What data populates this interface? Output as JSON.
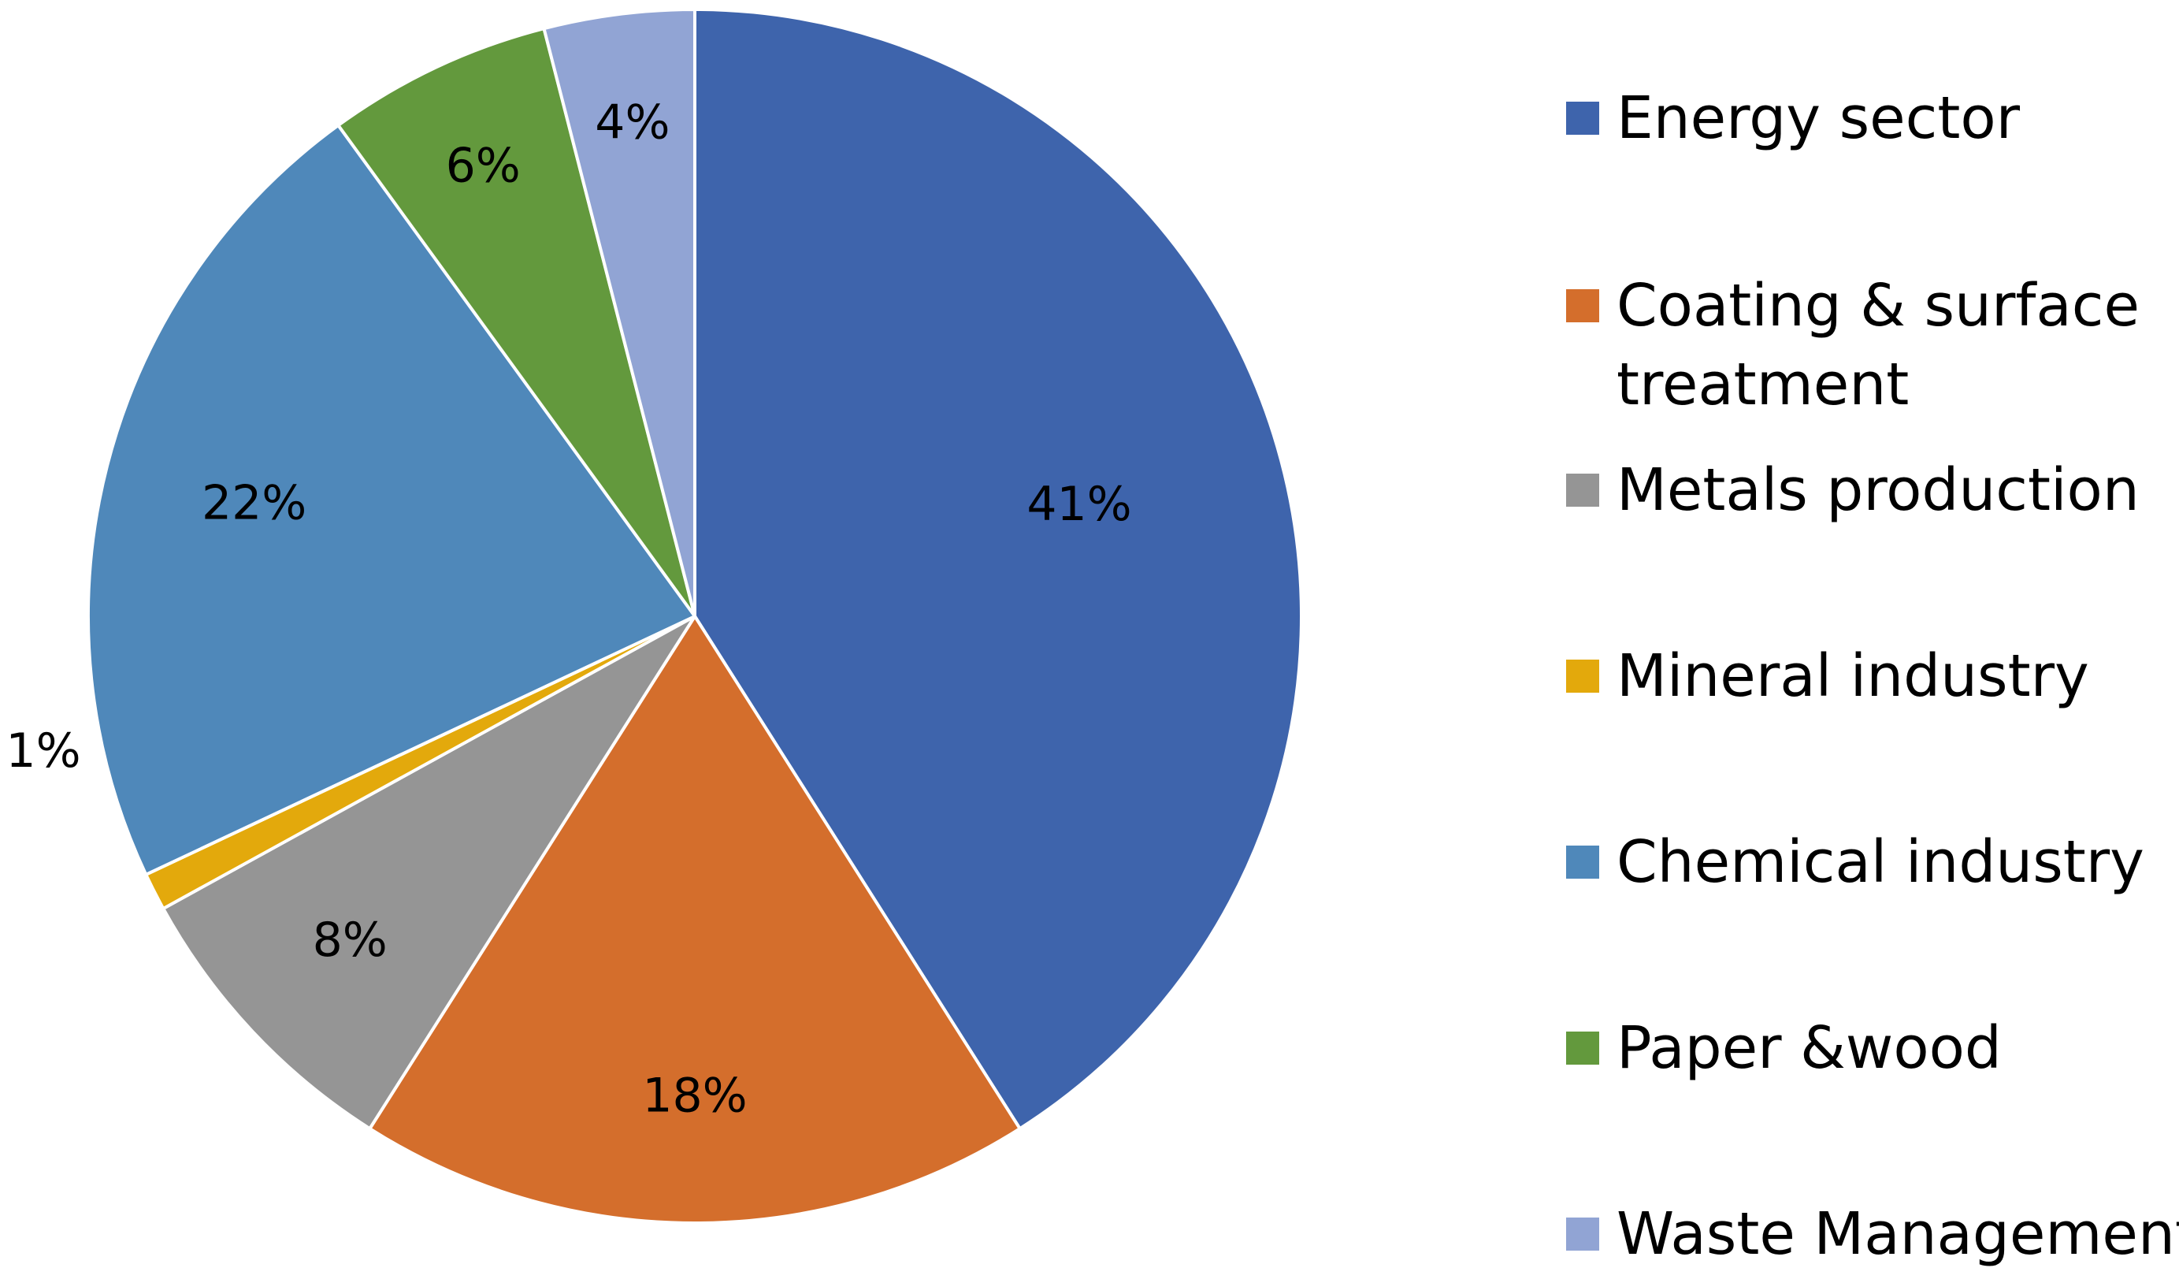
{
  "chart_data": {
    "type": "pie",
    "title": "",
    "start_angle_deg": 0,
    "direction": "clockwise",
    "slices": [
      {
        "name": "Energy sector",
        "value": 41,
        "label": "41%",
        "color": "#3E64AC"
      },
      {
        "name": "Coating & surface treatment",
        "value": 18,
        "label": "18%",
        "color": "#D46E2C"
      },
      {
        "name": "Metals production",
        "value": 8,
        "label": "8%",
        "color": "#959595"
      },
      {
        "name": "Mineral industry",
        "value": 1,
        "label": "1%",
        "color": "#E3A90C"
      },
      {
        "name": "Chemical industry",
        "value": 22,
        "label": "22%",
        "color": "#4F88BA"
      },
      {
        "name": "Paper &wood",
        "value": 6,
        "label": "6%",
        "color": "#63993D"
      },
      {
        "name": "Waste Management",
        "value": 4,
        "label": "4%",
        "color": "#91A4D4"
      }
    ],
    "legend": {
      "position": "right",
      "entries": [
        {
          "lines": [
            "Energy sector"
          ],
          "color": "#3E64AC"
        },
        {
          "lines": [
            "Coating & surface",
            "treatment"
          ],
          "color": "#D46E2C"
        },
        {
          "lines": [
            "Metals production"
          ],
          "color": "#959595"
        },
        {
          "lines": [
            "Mineral industry"
          ],
          "color": "#E3A90C"
        },
        {
          "lines": [
            "Chemical industry"
          ],
          "color": "#4F88BA"
        },
        {
          "lines": [
            "Paper &wood"
          ],
          "color": "#63993D"
        },
        {
          "lines": [
            "Waste Management"
          ],
          "color": "#91A4D4"
        }
      ]
    }
  }
}
